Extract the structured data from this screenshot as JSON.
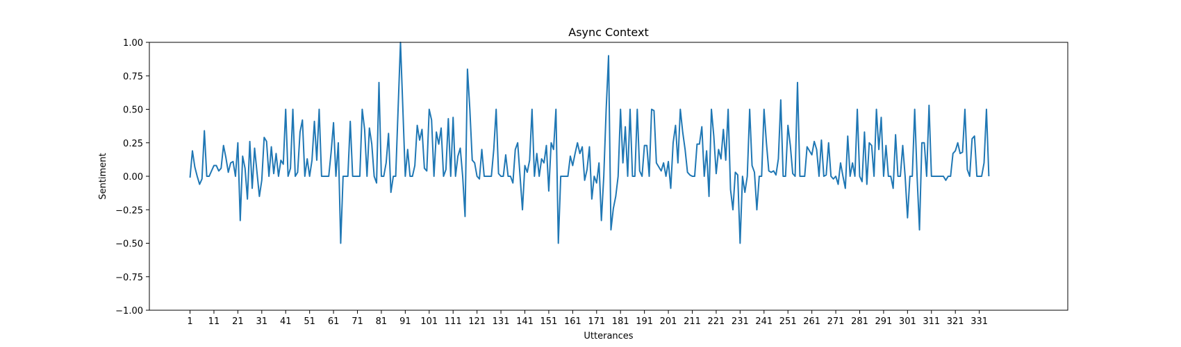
{
  "chart_data": {
    "type": "line",
    "title": "Async Context",
    "xlabel": "Utterances",
    "ylabel": "Sentiment",
    "ylim": [
      -1.0,
      1.0
    ],
    "xlim": [
      -16,
      368
    ],
    "grid": false,
    "legend": "none",
    "x_ticks": [
      1,
      11,
      21,
      31,
      41,
      51,
      61,
      71,
      81,
      91,
      101,
      111,
      121,
      131,
      141,
      151,
      161,
      171,
      181,
      191,
      201,
      211,
      221,
      231,
      241,
      251,
      261,
      271,
      281,
      291,
      301,
      311,
      321,
      331
    ],
    "y_ticks": [
      1.0,
      0.75,
      0.5,
      0.25,
      0.0,
      -0.25,
      -0.5,
      -0.75,
      -1.0
    ],
    "y_tick_labels": [
      "1.00",
      "0.75",
      "0.50",
      "0.25",
      "0.00",
      "−0.25",
      "−0.50",
      "−0.75",
      "−1.00"
    ],
    "x_start": 1,
    "series": [
      {
        "color": "#1f77b4",
        "values": [
          -0.01,
          0.19,
          0.07,
          0.0,
          -0.06,
          -0.02,
          0.34,
          0.0,
          0.0,
          0.04,
          0.08,
          0.08,
          0.04,
          0.06,
          0.23,
          0.14,
          0.03,
          0.1,
          0.11,
          0.0,
          0.25,
          -0.33,
          0.15,
          0.06,
          -0.17,
          0.26,
          -0.09,
          0.21,
          0.03,
          -0.15,
          -0.03,
          0.29,
          0.26,
          0.0,
          0.22,
          0.02,
          0.17,
          0.0,
          0.12,
          0.09,
          0.5,
          0.0,
          0.06,
          0.5,
          0.0,
          0.03,
          0.33,
          0.42,
          0.0,
          0.13,
          0.0,
          0.12,
          0.41,
          0.12,
          0.5,
          0.0,
          0.0,
          0.0,
          0.0,
          0.18,
          0.4,
          0.0,
          0.25,
          -0.5,
          0.0,
          0.0,
          0.0,
          0.41,
          0.0,
          0.0,
          0.0,
          0.0,
          0.5,
          0.35,
          0.0,
          0.36,
          0.24,
          0.0,
          -0.05,
          0.7,
          0.0,
          0.0,
          0.1,
          0.32,
          -0.12,
          0.0,
          0.0,
          0.5,
          1.0,
          0.5,
          0.0,
          0.2,
          0.0,
          0.0,
          0.08,
          0.38,
          0.27,
          0.35,
          0.06,
          0.04,
          0.5,
          0.42,
          0.0,
          0.33,
          0.24,
          0.36,
          0.0,
          0.05,
          0.43,
          0.0,
          0.44,
          0.0,
          0.15,
          0.21,
          0.0,
          -0.3,
          0.8,
          0.5,
          0.12,
          0.1,
          0.0,
          -0.02,
          0.2,
          0.0,
          0.0,
          0.0,
          0.0,
          0.2,
          0.5,
          0.02,
          0.0,
          0.0,
          0.16,
          0.0,
          0.0,
          -0.05,
          0.2,
          0.25,
          0.0,
          -0.25,
          0.08,
          0.03,
          0.12,
          0.5,
          0.0,
          0.17,
          0.0,
          0.13,
          0.1,
          0.23,
          -0.11,
          0.25,
          0.2,
          0.5,
          -0.5,
          0.0,
          0.0,
          0.0,
          0.0,
          0.15,
          0.08,
          0.17,
          0.25,
          0.17,
          0.22,
          -0.03,
          0.05,
          0.22,
          -0.17,
          0.0,
          -0.05,
          0.1,
          -0.33,
          0.0,
          0.5,
          0.9,
          -0.4,
          -0.24,
          -0.15,
          0.0,
          0.5,
          0.1,
          0.37,
          0.0,
          0.5,
          0.0,
          0.0,
          0.5,
          0.04,
          0.0,
          0.23,
          0.23,
          0.0,
          0.5,
          0.49,
          0.1,
          0.07,
          0.04,
          0.1,
          0.0,
          0.11,
          -0.09,
          0.25,
          0.38,
          0.1,
          0.5,
          0.33,
          0.2,
          0.03,
          0.01,
          0.0,
          0.0,
          0.24,
          0.24,
          0.37,
          0.0,
          0.19,
          -0.15,
          0.5,
          0.3,
          0.02,
          0.2,
          0.13,
          0.35,
          0.12,
          0.5,
          -0.1,
          -0.25,
          0.03,
          0.01,
          -0.5,
          0.0,
          -0.12,
          0.0,
          0.5,
          0.08,
          0.03,
          -0.25,
          0.0,
          0.0,
          0.5,
          0.25,
          0.04,
          0.03,
          0.04,
          0.01,
          0.13,
          0.57,
          0.0,
          0.0,
          0.38,
          0.23,
          0.02,
          0.0,
          0.7,
          0.0,
          0.0,
          0.0,
          0.22,
          0.19,
          0.16,
          0.26,
          0.2,
          0.0,
          0.27,
          0.0,
          0.01,
          0.25,
          0.0,
          -0.02,
          0.0,
          -0.06,
          0.1,
          0.0,
          -0.09,
          0.3,
          0.0,
          0.1,
          0.0,
          0.5,
          0.0,
          -0.04,
          0.33,
          -0.06,
          0.25,
          0.23,
          0.0,
          0.5,
          0.2,
          0.44,
          0.0,
          0.23,
          0.0,
          0.0,
          -0.09,
          0.31,
          0.0,
          0.0,
          0.23,
          0.0,
          -0.31,
          0.0,
          0.0,
          0.5,
          0.0,
          -0.4,
          0.25,
          0.25,
          0.0,
          0.53,
          0.0,
          0.0,
          0.0,
          0.0,
          0.0,
          0.0,
          -0.03,
          0.0,
          0.0,
          0.17,
          0.19,
          0.25,
          0.17,
          0.18,
          0.5,
          0.05,
          0.0,
          0.28,
          0.3,
          0.0,
          0.0,
          0.0,
          0.1,
          0.5,
          0.0
        ]
      }
    ]
  }
}
